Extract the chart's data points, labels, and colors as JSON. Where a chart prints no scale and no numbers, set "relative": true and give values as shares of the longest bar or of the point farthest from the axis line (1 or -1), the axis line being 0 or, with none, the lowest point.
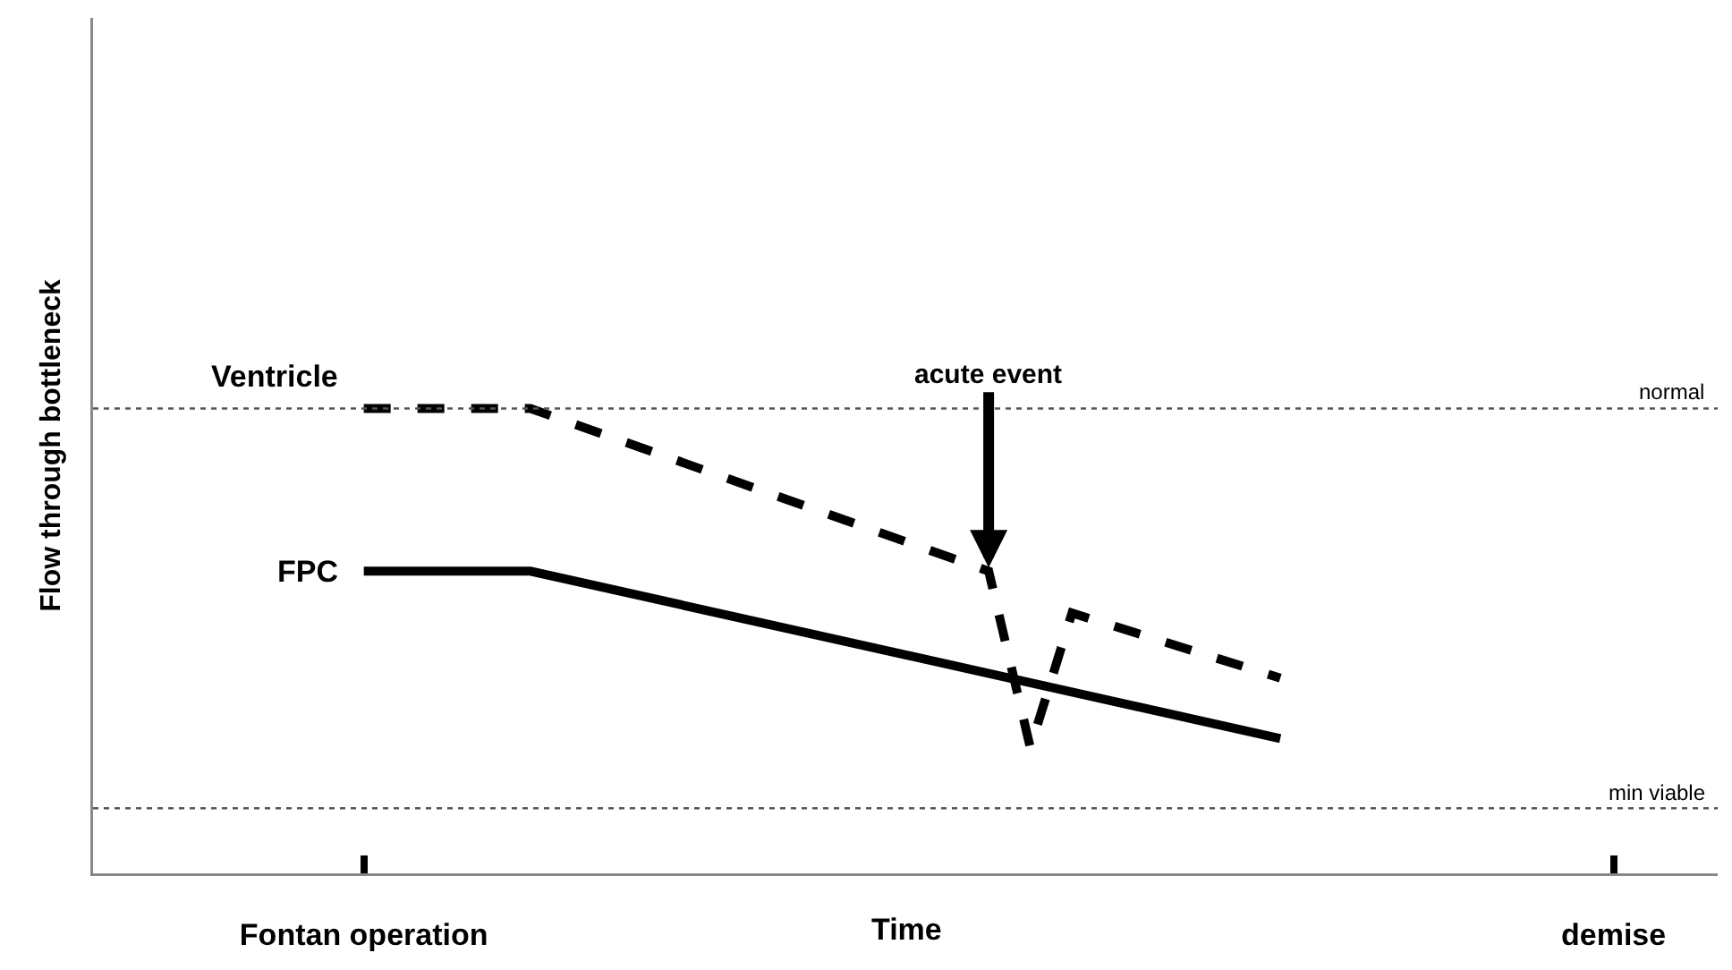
{
  "chart_data": {
    "type": "line",
    "relative": true,
    "ylabel": "Flow through bottleneck",
    "xlabel": "Time",
    "categories": [
      null,
      null,
      null,
      null,
      null,
      null,
      "Fontan operation",
      null,
      null,
      null,
      null,
      null,
      null,
      null,
      null,
      null,
      null,
      null,
      null,
      null,
      null,
      null,
      null,
      null,
      null,
      null,
      null,
      null,
      null,
      null,
      null,
      null,
      null,
      null,
      null,
      null,
      "demise",
      null,
      null
    ],
    "series": [
      {
        "name": "Ventricle",
        "color": "#000000",
        "line_style": "dashed",
        "values": [
          null,
          null,
          null,
          null,
          null,
          null,
          1,
          null,
          null,
          null,
          1,
          null,
          null,
          null,
          null,
          null,
          null,
          null,
          null,
          null,
          null,
          0.65,
          0.27,
          0.56,
          null,
          null,
          null,
          null,
          0.42,
          null,
          null,
          null,
          null,
          null,
          null,
          null,
          null,
          null,
          null
        ]
      },
      {
        "name": "FPC",
        "color": "#000000",
        "line_style": "solid",
        "values": [
          null,
          null,
          null,
          null,
          null,
          null,
          0.65,
          null,
          null,
          null,
          0.65,
          null,
          null,
          null,
          null,
          null,
          null,
          null,
          null,
          null,
          null,
          null,
          null,
          null,
          null,
          null,
          null,
          null,
          0.29,
          null,
          null,
          null,
          null,
          null,
          null,
          null,
          null,
          null,
          null
        ]
      }
    ],
    "ref_lines": [
      {
        "axis": "y",
        "value": 1,
        "label": "normal",
        "color": "#555555",
        "line_style": "dotted"
      },
      {
        "axis": "y",
        "value": 0.14,
        "label": "min viable",
        "color": "#555555",
        "line_style": "dotted"
      }
    ],
    "annotations": [
      {
        "text": "acute event",
        "y": 0.65
      }
    ],
    "grid": false,
    "legend": false,
    "marker": "none"
  }
}
